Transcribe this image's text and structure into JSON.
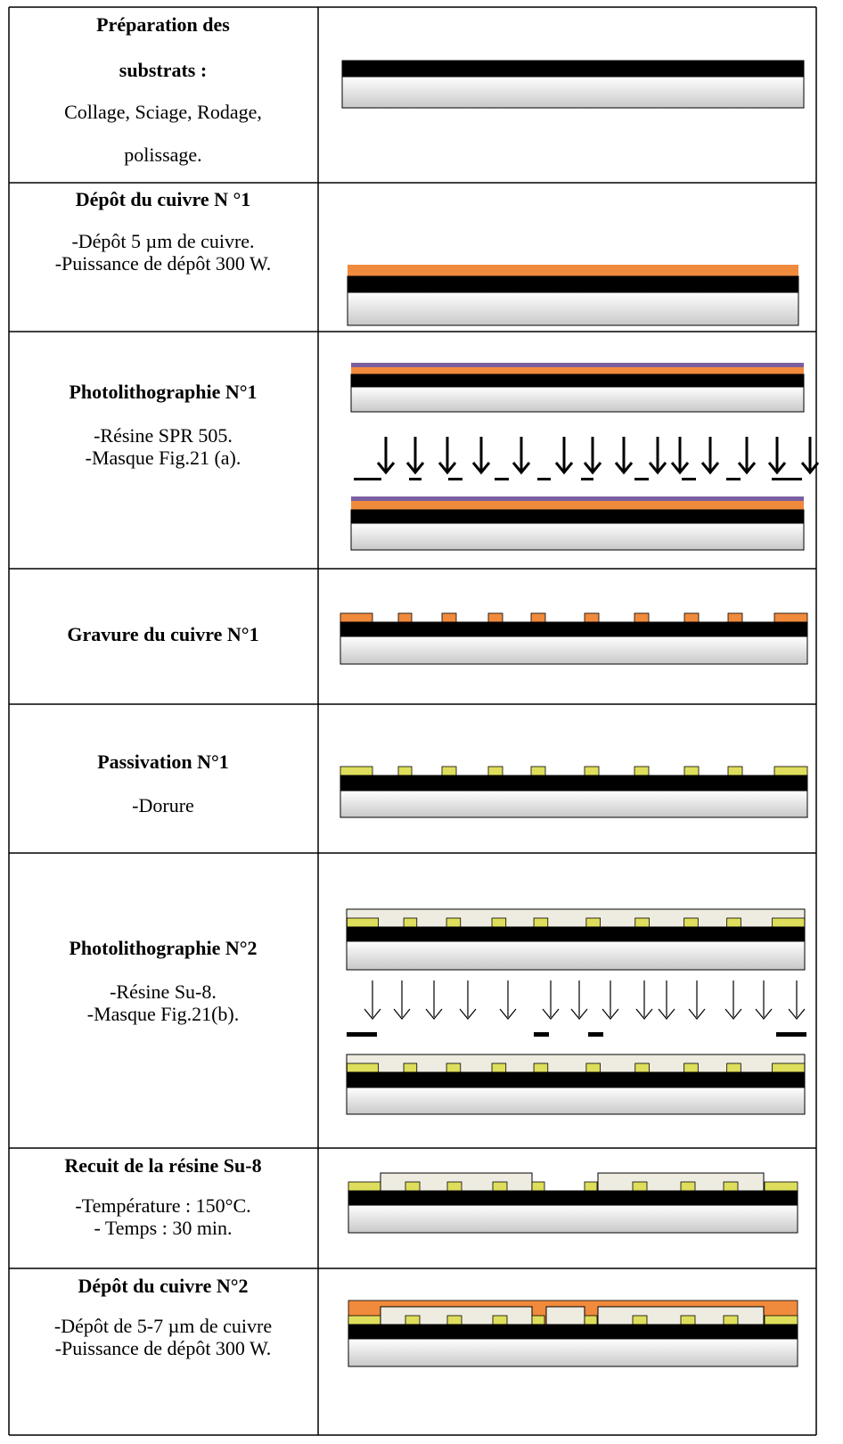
{
  "rows": [
    {
      "title": [
        "Préparation des",
        "substrats :"
      ],
      "text": [
        "Collage, Sciage, Rodage,",
        "polissage."
      ]
    },
    {
      "title": [
        "Dépôt du cuivre N °1"
      ],
      "text": [
        "-Dépôt 5 µm de cuivre.",
        "-Puissance de dépôt 300 W."
      ]
    },
    {
      "title": [
        "Photolithographie N°1"
      ],
      "text": [
        "-Résine SPR 505.",
        "-Masque Fig.21 (a)."
      ]
    },
    {
      "title": [
        "Gravure du cuivre N°1"
      ],
      "text": []
    },
    {
      "title": [
        "Passivation N°1"
      ],
      "text": [
        "-Dorure"
      ]
    },
    {
      "title": [
        "Photolithographie N°2"
      ],
      "text": [
        "-Résine Su-8.",
        "-Masque Fig.21(b)."
      ]
    },
    {
      "title": [
        "Recuit de la résine Su-8"
      ],
      "text": [
        "-Température : 150°C.",
        "- Temps : 30 min."
      ]
    },
    {
      "title": [
        "Dépôt du cuivre N°2"
      ],
      "text": [
        "-Dépôt de 5-7 µm de cuivre",
        "-Puissance de dépôt 300 W."
      ]
    }
  ]
}
